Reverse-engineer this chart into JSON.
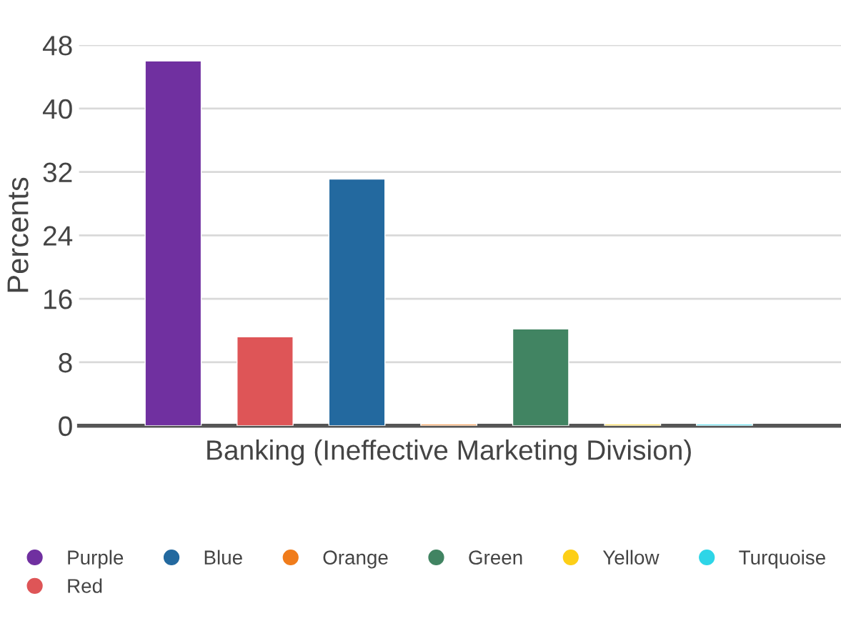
{
  "chart_data": {
    "type": "bar",
    "ylabel": "Percents",
    "categories": [
      "Banking (Ineffective Marketing Division)"
    ],
    "series": [
      {
        "name": "Purple",
        "color": "#7030a0",
        "values": [
          46
        ]
      },
      {
        "name": "Red",
        "color": "#de5557",
        "values": [
          11.2
        ]
      },
      {
        "name": "Blue",
        "color": "#23699f",
        "values": [
          31.1
        ]
      },
      {
        "name": "Orange",
        "color": "#f07c1b",
        "values": [
          0.2
        ]
      },
      {
        "name": "Green",
        "color": "#418462",
        "values": [
          12.2
        ]
      },
      {
        "name": "Yellow",
        "color": "#fdcf17",
        "values": [
          0.2
        ]
      },
      {
        "name": "Turquoise",
        "color": "#2ed5e7",
        "values": [
          0.2
        ]
      }
    ],
    "ylim": [
      0,
      48
    ],
    "yticks": [
      0,
      8,
      16,
      24,
      32,
      40,
      48
    ],
    "grid": "y",
    "legend": "bottom"
  }
}
